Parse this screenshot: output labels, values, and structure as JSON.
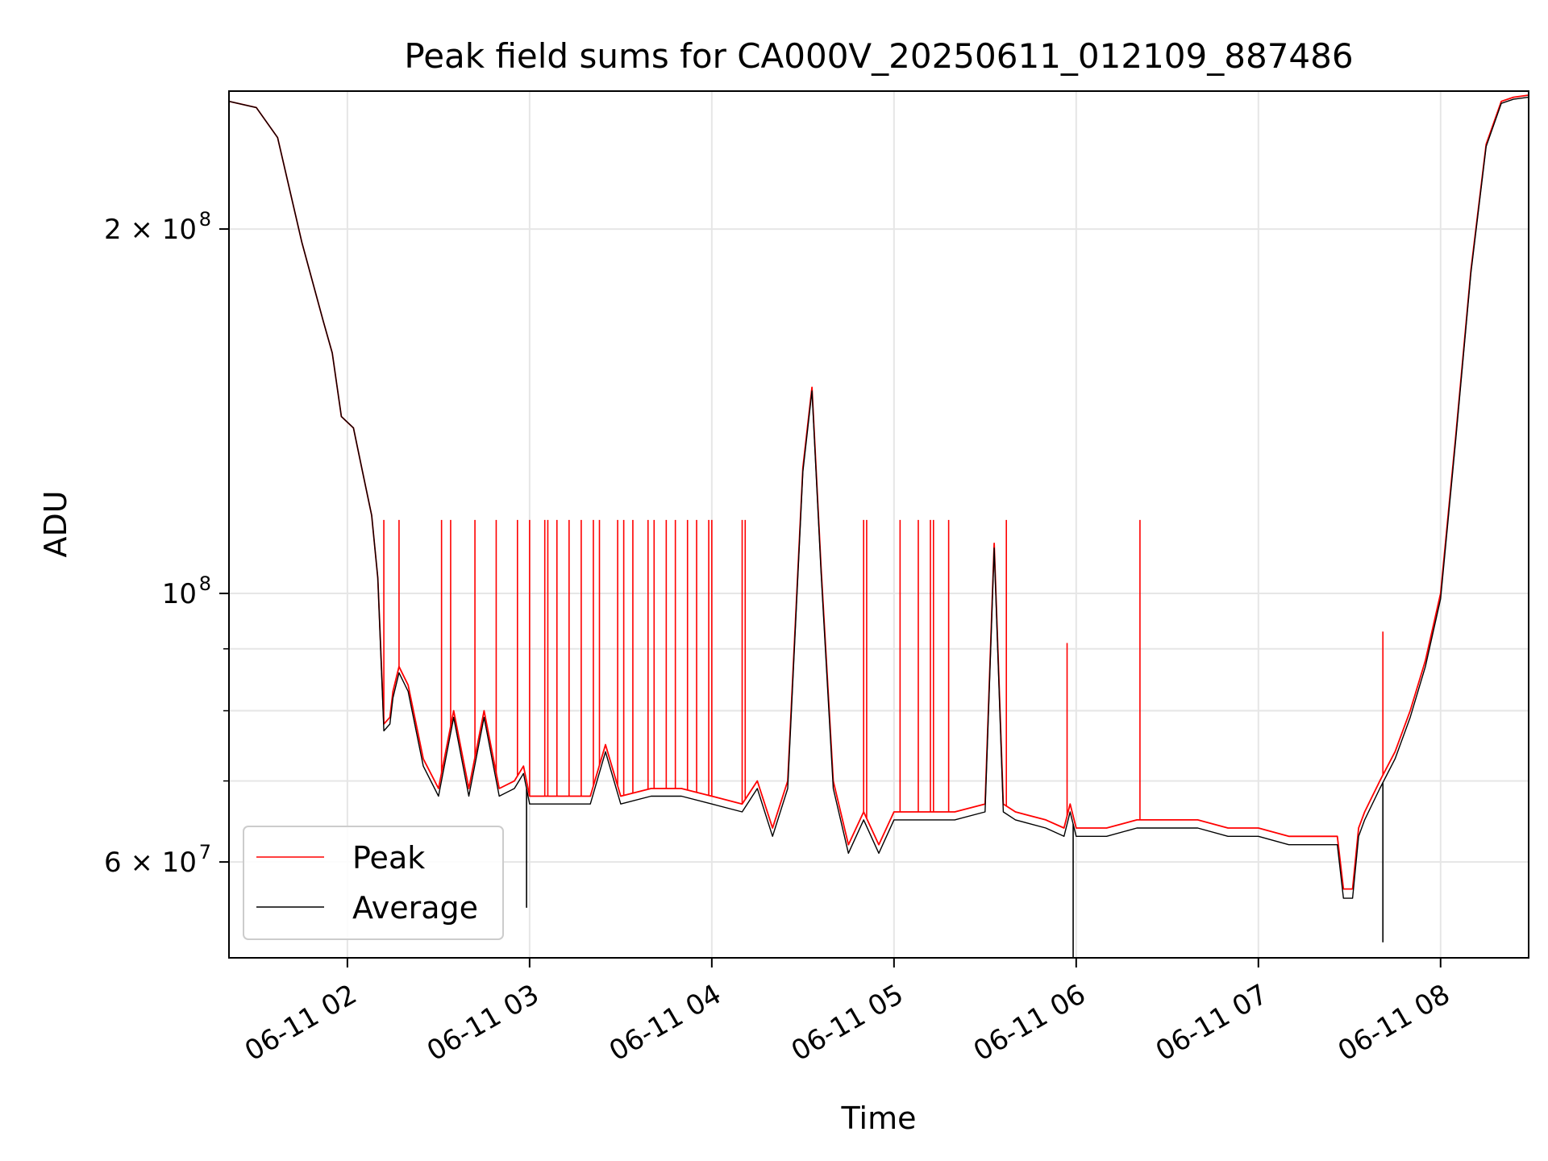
{
  "chart_data": {
    "type": "line",
    "title": "Peak field sums for CA000V_20250611_012109_887486",
    "xlabel": "Time",
    "ylabel": "ADU",
    "yscale": "log",
    "xlim": [
      "2025-06-11 01:21",
      "2025-06-11 08:29"
    ],
    "ylim": [
      50000000,
      260000000
    ],
    "x_ticks": [
      {
        "value": "2025-06-11 02:00",
        "label": "06-11 02"
      },
      {
        "value": "2025-06-11 03:00",
        "label": "06-11 03"
      },
      {
        "value": "2025-06-11 04:00",
        "label": "06-11 04"
      },
      {
        "value": "2025-06-11 05:00",
        "label": "06-11 05"
      },
      {
        "value": "2025-06-11 06:00",
        "label": "06-11 06"
      },
      {
        "value": "2025-06-11 07:00",
        "label": "06-11 07"
      },
      {
        "value": "2025-06-11 08:00",
        "label": "06-11 08"
      }
    ],
    "y_ticks_major": [
      {
        "value": 60000000,
        "label_base": "6 × 10",
        "label_exp": "7"
      },
      {
        "value": 100000000,
        "label_base": "10",
        "label_exp": "8"
      },
      {
        "value": 200000000,
        "label_base": "2 × 10",
        "label_exp": "8"
      }
    ],
    "y_ticks_minor": [
      70000000,
      80000000,
      90000000
    ],
    "grid": true,
    "legend_position": "lower-left",
    "series": [
      {
        "name": "Peak",
        "color": "#ff0000",
        "x": [
          "2025-06-11 01:21",
          "2025-06-11 01:30",
          "2025-06-11 01:37",
          "2025-06-11 01:45",
          "2025-06-11 01:52",
          "2025-06-11 01:55",
          "2025-06-11 01:58",
          "2025-06-11 02:02",
          "2025-06-11 02:05",
          "2025-06-11 02:08",
          "2025-06-11 02:10",
          "2025-06-11 02:12",
          "2025-06-11 02:14",
          "2025-06-11 02:15",
          "2025-06-11 02:17",
          "2025-06-11 02:20",
          "2025-06-11 02:25",
          "2025-06-11 02:30",
          "2025-06-11 02:35",
          "2025-06-11 02:40",
          "2025-06-11 02:45",
          "2025-06-11 02:50",
          "2025-06-11 02:55",
          "2025-06-11 02:58",
          "2025-06-11 03:00",
          "2025-06-11 03:10",
          "2025-06-11 03:20",
          "2025-06-11 03:25",
          "2025-06-11 03:30",
          "2025-06-11 03:40",
          "2025-06-11 03:50",
          "2025-06-11 04:00",
          "2025-06-11 04:10",
          "2025-06-11 04:15",
          "2025-06-11 04:20",
          "2025-06-11 04:25",
          "2025-06-11 04:30",
          "2025-06-11 04:33",
          "2025-06-11 04:36",
          "2025-06-11 04:40",
          "2025-06-11 04:45",
          "2025-06-11 04:50",
          "2025-06-11 04:55",
          "2025-06-11 05:00",
          "2025-06-11 05:10",
          "2025-06-11 05:20",
          "2025-06-11 05:30",
          "2025-06-11 05:33",
          "2025-06-11 05:36",
          "2025-06-11 05:40",
          "2025-06-11 05:50",
          "2025-06-11 05:56",
          "2025-06-11 05:58",
          "2025-06-11 06:00",
          "2025-06-11 06:10",
          "2025-06-11 06:20",
          "2025-06-11 06:30",
          "2025-06-11 06:40",
          "2025-06-11 06:50",
          "2025-06-11 07:00",
          "2025-06-11 07:10",
          "2025-06-11 07:20",
          "2025-06-11 07:26",
          "2025-06-11 07:28",
          "2025-06-11 07:31",
          "2025-06-11 07:33",
          "2025-06-11 07:35",
          "2025-06-11 07:40",
          "2025-06-11 07:45",
          "2025-06-11 07:50",
          "2025-06-11 07:55",
          "2025-06-11 08:00",
          "2025-06-11 08:05",
          "2025-06-11 08:10",
          "2025-06-11 08:15",
          "2025-06-11 08:20",
          "2025-06-11 08:24",
          "2025-06-11 08:29"
        ],
        "values": [
          255000000,
          252000000,
          238000000,
          195000000,
          168000000,
          158000000,
          140000000,
          137000000,
          126000000,
          116000000,
          103000000,
          78000000,
          79000000,
          83000000,
          87000000,
          84000000,
          73000000,
          69000000,
          80000000,
          69000000,
          80000000,
          69000000,
          70000000,
          72000000,
          68000000,
          68000000,
          68000000,
          75000000,
          68000000,
          69000000,
          69000000,
          68000000,
          67000000,
          70000000,
          64000000,
          70000000,
          127000000,
          148000000,
          105000000,
          70000000,
          62000000,
          66000000,
          62000000,
          66000000,
          66000000,
          66000000,
          67000000,
          110000000,
          67000000,
          66000000,
          65000000,
          64000000,
          67000000,
          64000000,
          64000000,
          65000000,
          65000000,
          65000000,
          64000000,
          64000000,
          63000000,
          63000000,
          63000000,
          57000000,
          57000000,
          64000000,
          66000000,
          70000000,
          74000000,
          80000000,
          88000000,
          100000000,
          135000000,
          185000000,
          235000000,
          255000000,
          257000000,
          258000000
        ],
        "spikes": [
          {
            "x": "2025-06-11 02:12",
            "y": 115000000
          },
          {
            "x": "2025-06-11 02:17",
            "y": 115000000
          },
          {
            "x": "2025-06-11 02:31",
            "y": 115000000
          },
          {
            "x": "2025-06-11 02:34",
            "y": 115000000
          },
          {
            "x": "2025-06-11 02:42",
            "y": 115000000
          },
          {
            "x": "2025-06-11 02:49",
            "y": 115000000
          },
          {
            "x": "2025-06-11 02:56",
            "y": 115000000
          },
          {
            "x": "2025-06-11 03:00",
            "y": 115000000
          },
          {
            "x": "2025-06-11 03:05",
            "y": 115000000
          },
          {
            "x": "2025-06-11 03:06",
            "y": 115000000
          },
          {
            "x": "2025-06-11 03:09",
            "y": 115000000
          },
          {
            "x": "2025-06-11 03:13",
            "y": 115000000
          },
          {
            "x": "2025-06-11 03:17",
            "y": 115000000
          },
          {
            "x": "2025-06-11 03:21",
            "y": 115000000
          },
          {
            "x": "2025-06-11 03:23",
            "y": 115000000
          },
          {
            "x": "2025-06-11 03:29",
            "y": 115000000
          },
          {
            "x": "2025-06-11 03:31",
            "y": 115000000
          },
          {
            "x": "2025-06-11 03:34",
            "y": 115000000
          },
          {
            "x": "2025-06-11 03:39",
            "y": 115000000
          },
          {
            "x": "2025-06-11 03:41",
            "y": 115000000
          },
          {
            "x": "2025-06-11 03:45",
            "y": 115000000
          },
          {
            "x": "2025-06-11 03:48",
            "y": 115000000
          },
          {
            "x": "2025-06-11 03:52",
            "y": 115000000
          },
          {
            "x": "2025-06-11 03:55",
            "y": 115000000
          },
          {
            "x": "2025-06-11 03:59",
            "y": 115000000
          },
          {
            "x": "2025-06-11 04:00",
            "y": 115000000
          },
          {
            "x": "2025-06-11 04:10",
            "y": 115000000
          },
          {
            "x": "2025-06-11 04:11",
            "y": 115000000
          },
          {
            "x": "2025-06-11 04:50",
            "y": 115000000
          },
          {
            "x": "2025-06-11 04:51",
            "y": 115000000
          },
          {
            "x": "2025-06-11 05:02",
            "y": 115000000
          },
          {
            "x": "2025-06-11 05:08",
            "y": 115000000
          },
          {
            "x": "2025-06-11 05:12",
            "y": 115000000
          },
          {
            "x": "2025-06-11 05:13",
            "y": 115000000
          },
          {
            "x": "2025-06-11 05:18",
            "y": 115000000
          },
          {
            "x": "2025-06-11 05:37",
            "y": 115000000
          },
          {
            "x": "2025-06-11 05:57",
            "y": 91000000
          },
          {
            "x": "2025-06-11 06:21",
            "y": 115000000
          },
          {
            "x": "2025-06-11 07:41",
            "y": 93000000
          }
        ]
      },
      {
        "name": "Average",
        "color": "#000000",
        "x": [
          "2025-06-11 01:21",
          "2025-06-11 01:30",
          "2025-06-11 01:37",
          "2025-06-11 01:45",
          "2025-06-11 01:52",
          "2025-06-11 01:55",
          "2025-06-11 01:58",
          "2025-06-11 02:02",
          "2025-06-11 02:05",
          "2025-06-11 02:08",
          "2025-06-11 02:10",
          "2025-06-11 02:12",
          "2025-06-11 02:14",
          "2025-06-11 02:15",
          "2025-06-11 02:17",
          "2025-06-11 02:20",
          "2025-06-11 02:25",
          "2025-06-11 02:30",
          "2025-06-11 02:35",
          "2025-06-11 02:40",
          "2025-06-11 02:45",
          "2025-06-11 02:50",
          "2025-06-11 02:55",
          "2025-06-11 02:58",
          "2025-06-11 03:00",
          "2025-06-11 03:10",
          "2025-06-11 03:20",
          "2025-06-11 03:25",
          "2025-06-11 03:30",
          "2025-06-11 03:40",
          "2025-06-11 03:50",
          "2025-06-11 04:00",
          "2025-06-11 04:10",
          "2025-06-11 04:15",
          "2025-06-11 04:20",
          "2025-06-11 04:25",
          "2025-06-11 04:30",
          "2025-06-11 04:33",
          "2025-06-11 04:36",
          "2025-06-11 04:40",
          "2025-06-11 04:45",
          "2025-06-11 04:50",
          "2025-06-11 04:55",
          "2025-06-11 05:00",
          "2025-06-11 05:10",
          "2025-06-11 05:20",
          "2025-06-11 05:30",
          "2025-06-11 05:33",
          "2025-06-11 05:36",
          "2025-06-11 05:40",
          "2025-06-11 05:50",
          "2025-06-11 05:56",
          "2025-06-11 05:58",
          "2025-06-11 06:00",
          "2025-06-11 06:10",
          "2025-06-11 06:20",
          "2025-06-11 06:30",
          "2025-06-11 06:40",
          "2025-06-11 06:50",
          "2025-06-11 07:00",
          "2025-06-11 07:10",
          "2025-06-11 07:20",
          "2025-06-11 07:26",
          "2025-06-11 07:28",
          "2025-06-11 07:31",
          "2025-06-11 07:33",
          "2025-06-11 07:35",
          "2025-06-11 07:40",
          "2025-06-11 07:45",
          "2025-06-11 07:50",
          "2025-06-11 07:55",
          "2025-06-11 08:00",
          "2025-06-11 08:05",
          "2025-06-11 08:10",
          "2025-06-11 08:15",
          "2025-06-11 08:20",
          "2025-06-11 08:24",
          "2025-06-11 08:29"
        ],
        "values": [
          255000000,
          252000000,
          238000000,
          195000000,
          168000000,
          158000000,
          140000000,
          137000000,
          126000000,
          116000000,
          103000000,
          77000000,
          78000000,
          82000000,
          86000000,
          83000000,
          72000000,
          68000000,
          79000000,
          68000000,
          79000000,
          68000000,
          69000000,
          71000000,
          67000000,
          67000000,
          67000000,
          74000000,
          67000000,
          68000000,
          68000000,
          67000000,
          66000000,
          69000000,
          63000000,
          69000000,
          126000000,
          147000000,
          104000000,
          69000000,
          61000000,
          65000000,
          61000000,
          65000000,
          65000000,
          65000000,
          66000000,
          109000000,
          66000000,
          65000000,
          64000000,
          63000000,
          66000000,
          63000000,
          63000000,
          64000000,
          64000000,
          64000000,
          63000000,
          63000000,
          62000000,
          62000000,
          62000000,
          56000000,
          56000000,
          63000000,
          65000000,
          69000000,
          73000000,
          79000000,
          87000000,
          99000000,
          134000000,
          184000000,
          234000000,
          254000000,
          256000000,
          257000000
        ],
        "dips": [
          {
            "x": "2025-06-11 02:59",
            "y": 55000000
          },
          {
            "x": "2025-06-11 05:59",
            "y": 50000000
          },
          {
            "x": "2025-06-11 07:41",
            "y": 51500000
          }
        ]
      }
    ]
  }
}
